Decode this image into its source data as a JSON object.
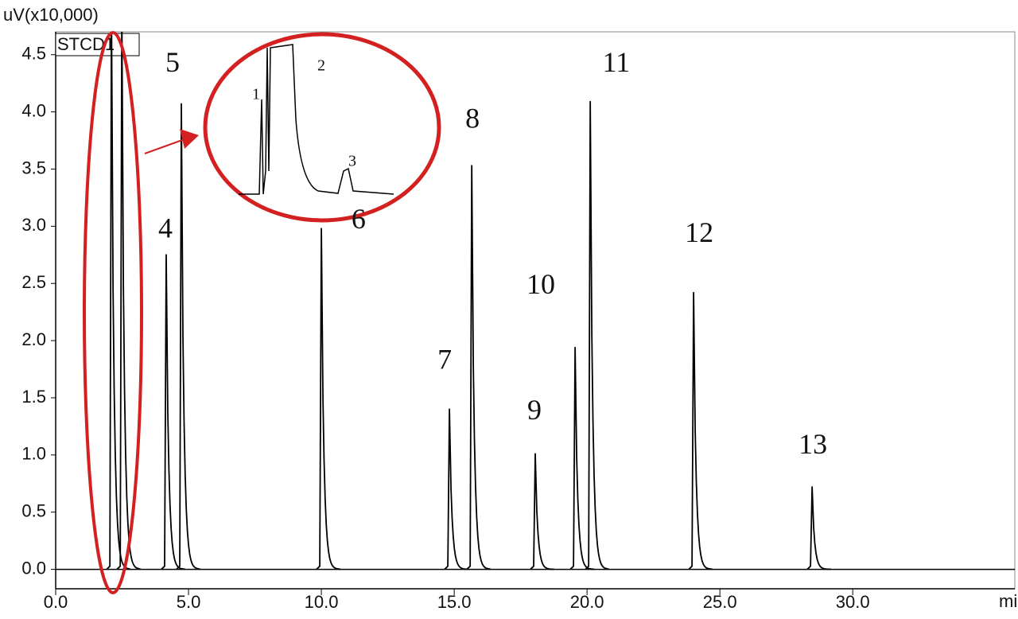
{
  "chart_data": {
    "type": "line",
    "y_axis_label": "uV(x10,000)",
    "x_axis_label": "min",
    "trace_label": "STCD1",
    "xlim": [
      0,
      36.1
    ],
    "ylim": [
      -0.17,
      4.7
    ],
    "xticks": [
      {
        "value": 0,
        "label": "0.0"
      },
      {
        "value": 5,
        "label": "5.0"
      },
      {
        "value": 10,
        "label": "10.0"
      },
      {
        "value": 15,
        "label": "15.0"
      },
      {
        "value": 20,
        "label": "20.0"
      },
      {
        "value": 25,
        "label": "25.0"
      },
      {
        "value": 30,
        "label": "30.0"
      }
    ],
    "yticks": [
      {
        "value": 0,
        "label": "0.0"
      },
      {
        "value": 0.5,
        "label": "0.5"
      },
      {
        "value": 1,
        "label": "1.0"
      },
      {
        "value": 1.5,
        "label": "1.5"
      },
      {
        "value": 2,
        "label": "2.0"
      },
      {
        "value": 2.5,
        "label": "2.5"
      },
      {
        "value": 3,
        "label": "3.0"
      },
      {
        "value": 3.5,
        "label": "3.5"
      },
      {
        "value": 4,
        "label": "4.0"
      },
      {
        "value": 4.5,
        "label": "4.5"
      }
    ],
    "series": [
      {
        "name": "STCD1",
        "color": "#000000",
        "x": [
          2.1,
          2.49,
          4.16,
          4.73,
          10.0,
          14.82,
          15.66,
          18.05,
          19.55,
          20.12,
          24.01,
          28.47
        ],
        "values": [
          4.9,
          4.9,
          2.75,
          4.07,
          2.98,
          1.4,
          3.53,
          1.01,
          1.94,
          4.09,
          2.42,
          0.72
        ]
      }
    ],
    "annotations": [
      {
        "text": "4",
        "x": 4.13,
        "y": 2.96
      },
      {
        "text": "5",
        "x": 4.4,
        "y": 4.41
      },
      {
        "text": "6",
        "x": 11.4,
        "y": 3.04
      },
      {
        "text": "7",
        "x": 14.64,
        "y": 1.81
      },
      {
        "text": "8",
        "x": 15.69,
        "y": 3.92
      },
      {
        "text": "9",
        "x": 18.02,
        "y": 1.37
      },
      {
        "text": "10",
        "x": 18.26,
        "y": 2.47
      },
      {
        "text": "11",
        "x": 21.1,
        "y": 4.41
      },
      {
        "text": "12",
        "x": 24.22,
        "y": 2.92
      },
      {
        "text": "13",
        "x": 28.5,
        "y": 1.07
      }
    ],
    "inset_labels": [
      "1",
      "2",
      "3"
    ]
  }
}
